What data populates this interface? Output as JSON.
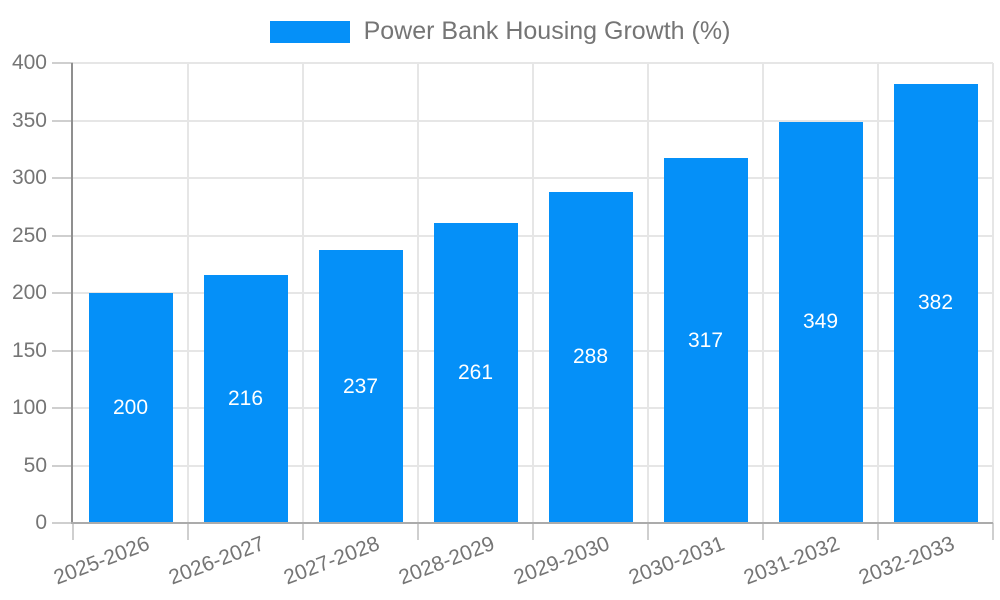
{
  "chart_data": {
    "type": "bar",
    "title": "Power Bank Housing Growth (%)",
    "categories": [
      "2025-2026",
      "2026-2027",
      "2027-2028",
      "2028-2029",
      "2029-2030",
      "2030-2031",
      "2031-2032",
      "2032-2033"
    ],
    "values": [
      200,
      216,
      237,
      261,
      288,
      317,
      349,
      382
    ],
    "xlabel": "",
    "ylabel": "",
    "ylim": [
      0,
      400
    ],
    "yticks": [
      0,
      50,
      100,
      150,
      200,
      250,
      300,
      350,
      400
    ],
    "grid": true,
    "legend_position": "top-center",
    "bar_color": "#0590f8",
    "bar_label_color": "#ffffff",
    "axis_text_color": "#757575",
    "gridline_color": "#e6e6e6"
  }
}
